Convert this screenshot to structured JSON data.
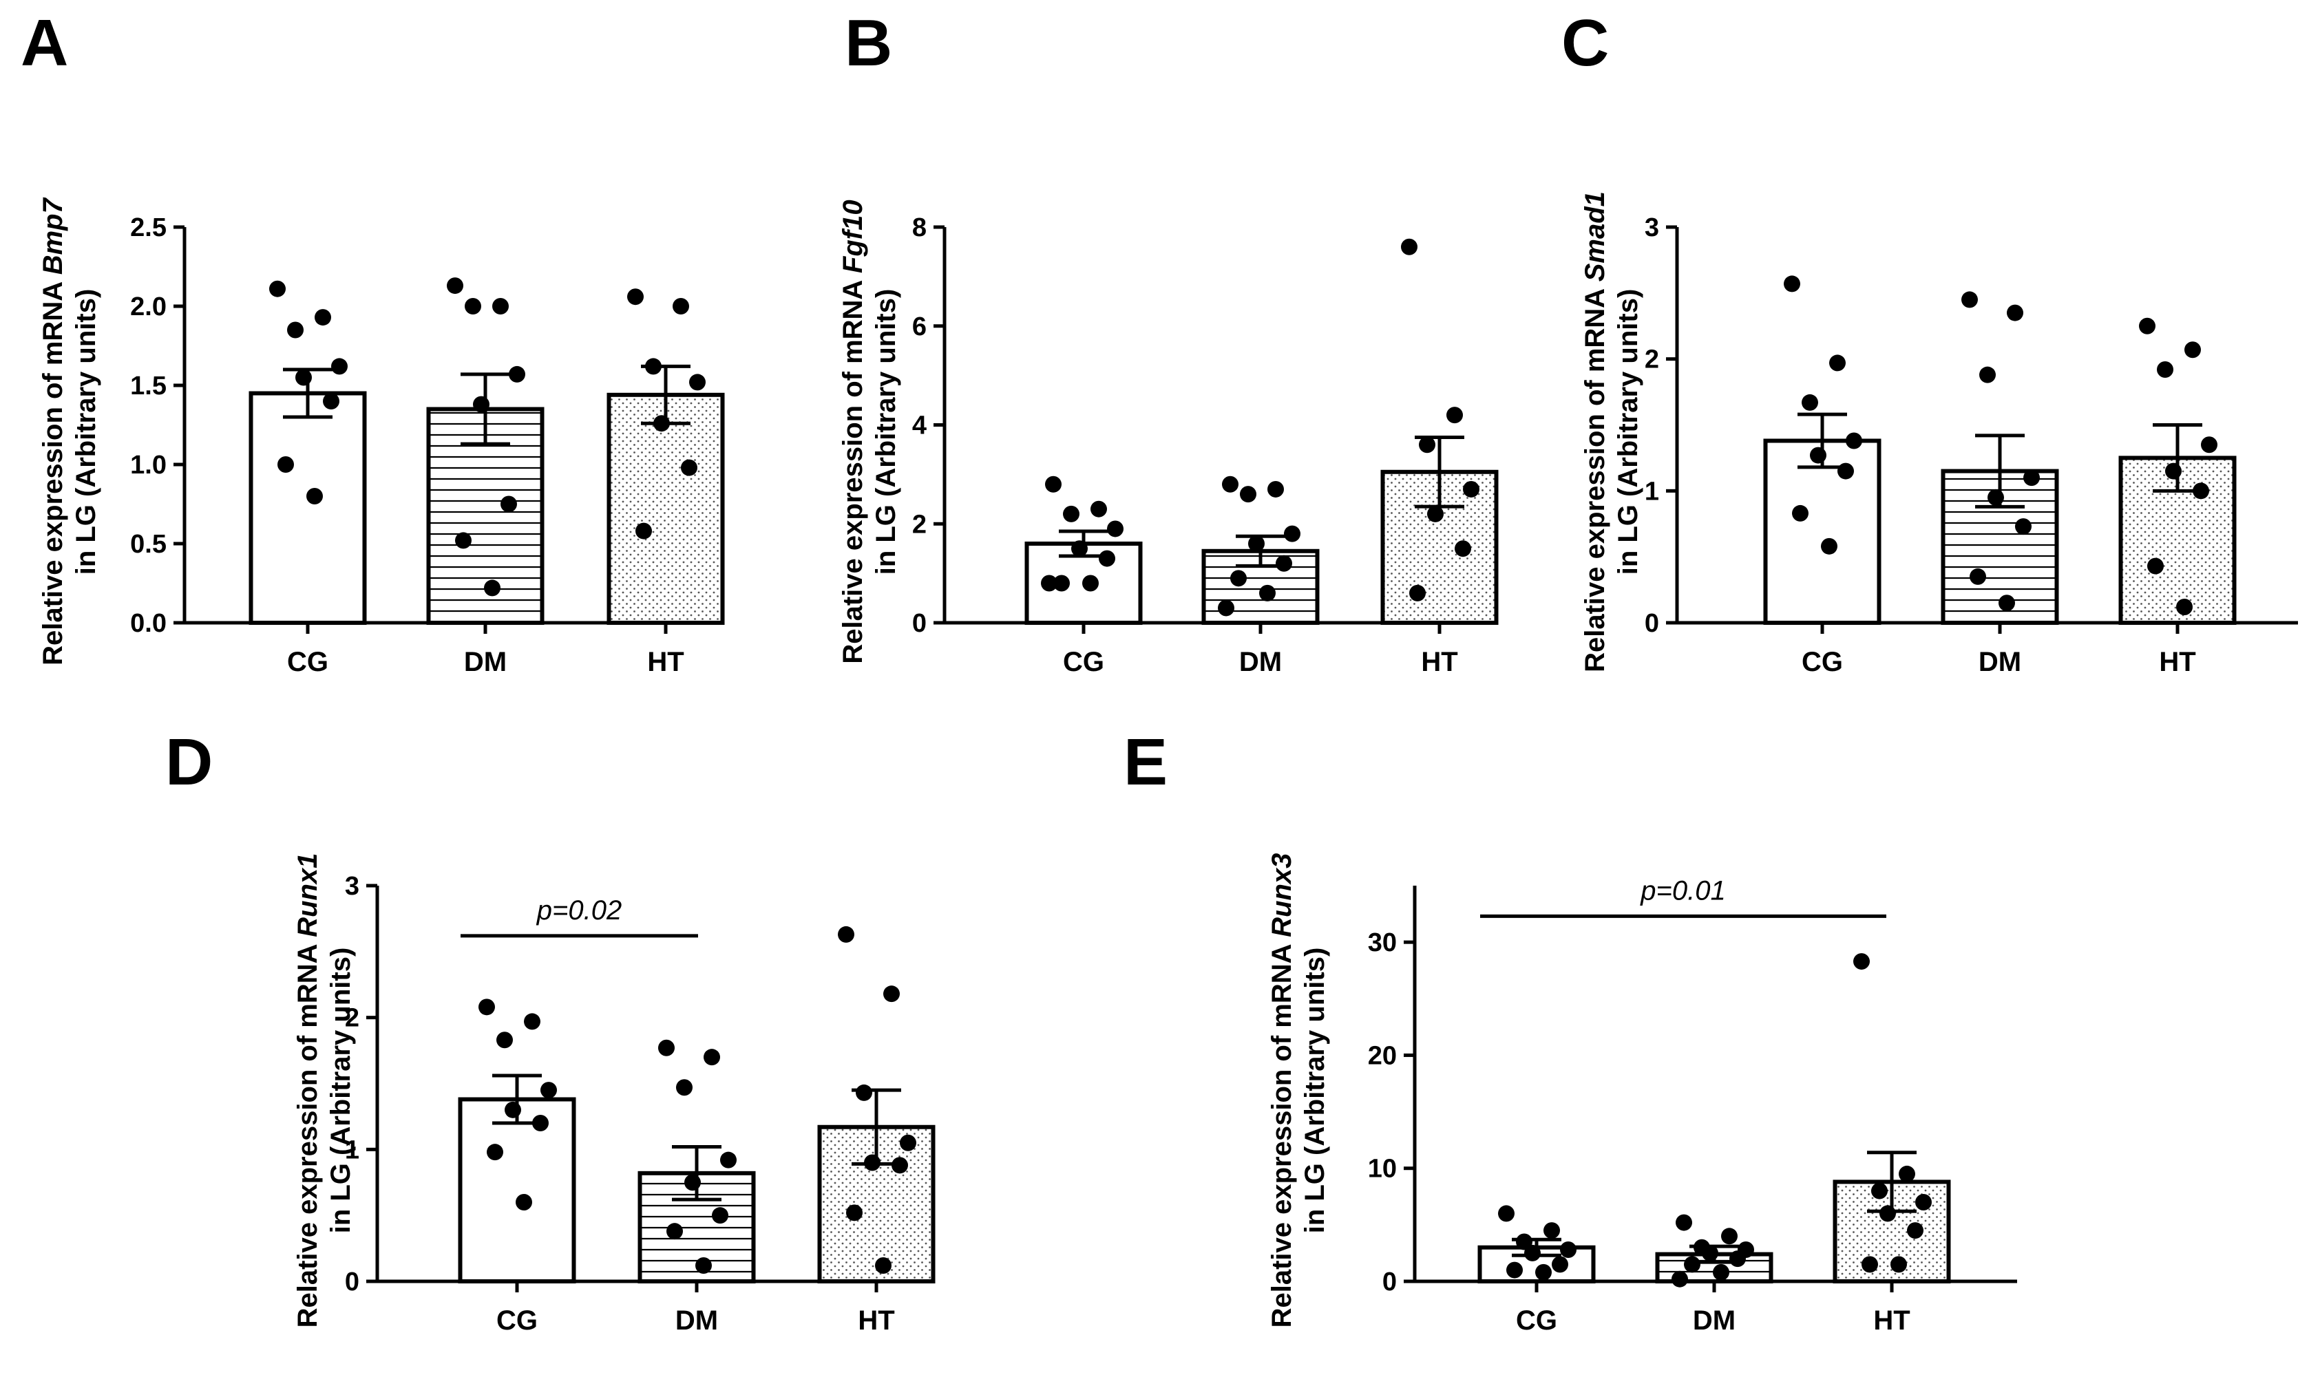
{
  "figure": {
    "patterns": {
      "CG": "none",
      "DM": "horizontal-lines",
      "HT": "dots"
    }
  },
  "chart_data": [
    {
      "panel": "A",
      "type": "bar",
      "gene": "Bmp7",
      "ylabel_line1_prefix": "Relative expression of mRNA ",
      "ylabel_line2": "in LG (Arbitrary units)",
      "categories": [
        "CG",
        "DM",
        "HT"
      ],
      "means": [
        1.45,
        1.35,
        1.44
      ],
      "errors": [
        0.15,
        0.22,
        0.18
      ],
      "points": [
        [
          2.11,
          1.93,
          1.85,
          1.62,
          1.55,
          1.4,
          1.0,
          0.8
        ],
        [
          2.13,
          2.0,
          2.0,
          1.57,
          1.38,
          0.75,
          0.52,
          0.22
        ],
        [
          2.06,
          2.0,
          1.62,
          1.52,
          1.26,
          0.98,
          0.58
        ]
      ],
      "ylim": [
        0,
        2.5
      ],
      "yticks": [
        0,
        0.5,
        1.0,
        1.5,
        2.0,
        2.5
      ],
      "ytick_labels": [
        "0.0",
        "0.5",
        "1.0",
        "1.5",
        "2.0",
        "2.5"
      ],
      "significance": null
    },
    {
      "panel": "B",
      "type": "bar",
      "gene": "Fgf10",
      "ylabel_line1_prefix": "Relative expression of mRNA ",
      "ylabel_line2": "in LG (Arbitrary units)",
      "categories": [
        "CG",
        "DM",
        "HT"
      ],
      "means": [
        1.6,
        1.45,
        3.05
      ],
      "errors": [
        0.25,
        0.3,
        0.7
      ],
      "points": [
        [
          2.8,
          2.3,
          2.2,
          1.9,
          1.5,
          1.3,
          0.8,
          0.8,
          0.8
        ],
        [
          2.8,
          2.7,
          2.6,
          1.8,
          1.6,
          1.2,
          0.9,
          0.6,
          0.3
        ],
        [
          7.6,
          4.2,
          3.6,
          2.7,
          2.2,
          1.5,
          0.6
        ]
      ],
      "ylim": [
        0,
        8
      ],
      "yticks": [
        0,
        2,
        4,
        6,
        8
      ],
      "ytick_labels": [
        "0",
        "2",
        "4",
        "6",
        "8"
      ],
      "significance": null
    },
    {
      "panel": "C",
      "type": "bar",
      "gene": "Smad1",
      "ylabel_line1_prefix": "Relative expression of mRNA ",
      "ylabel_line2": "in LG (Arbitrary units)",
      "categories": [
        "CG",
        "DM",
        "HT"
      ],
      "means": [
        1.38,
        1.15,
        1.25
      ],
      "errors": [
        0.2,
        0.27,
        0.25
      ],
      "points": [
        [
          2.57,
          1.97,
          1.67,
          1.38,
          1.27,
          1.15,
          0.83,
          0.58
        ],
        [
          2.45,
          2.35,
          1.88,
          1.1,
          0.95,
          0.73,
          0.35,
          0.15
        ],
        [
          2.25,
          2.07,
          1.92,
          1.35,
          1.15,
          1.0,
          0.43,
          0.12
        ]
      ],
      "ylim": [
        0,
        3
      ],
      "yticks": [
        0,
        1,
        2,
        3
      ],
      "ytick_labels": [
        "0",
        "1",
        "2",
        "3"
      ],
      "significance": null
    },
    {
      "panel": "D",
      "type": "bar",
      "gene": "Runx1",
      "ylabel_line1_prefix": "Relative expression of mRNA ",
      "ylabel_line2": "in LG (Arbitrary units)",
      "categories": [
        "CG",
        "DM",
        "HT"
      ],
      "means": [
        1.38,
        0.82,
        1.17
      ],
      "errors": [
        0.18,
        0.2,
        0.28
      ],
      "points": [
        [
          2.08,
          1.97,
          1.83,
          1.45,
          1.3,
          1.2,
          0.98,
          0.6
        ],
        [
          1.77,
          1.7,
          1.47,
          0.92,
          0.75,
          0.5,
          0.38,
          0.12
        ],
        [
          2.63,
          2.18,
          1.43,
          1.05,
          0.9,
          0.88,
          0.52,
          0.12
        ]
      ],
      "ylim": [
        0,
        3
      ],
      "yticks": [
        0,
        1,
        2,
        3
      ],
      "ytick_labels": [
        "0",
        "1",
        "2",
        "3"
      ],
      "significance": {
        "from": 0,
        "to": 1,
        "value": 2.62,
        "label": "p=0.02"
      }
    },
    {
      "panel": "E",
      "type": "bar",
      "gene": "Runx3",
      "ylabel_line1_prefix": "Relative expression of mRNA ",
      "ylabel_line2": "in LG (Arbitrary units)",
      "categories": [
        "CG",
        "DM",
        "HT"
      ],
      "means": [
        3.0,
        2.4,
        8.8
      ],
      "errors": [
        0.7,
        0.7,
        2.6
      ],
      "points": [
        [
          6.0,
          4.5,
          3.5,
          2.8,
          2.5,
          1.5,
          1.0,
          0.8
        ],
        [
          5.2,
          4.0,
          3.0,
          2.8,
          2.5,
          2.0,
          1.5,
          0.8,
          0.2
        ],
        [
          28.3,
          9.5,
          8.0,
          7.0,
          6.0,
          4.5,
          1.5,
          1.5
        ]
      ],
      "ylim": [
        0,
        35
      ],
      "yticks": [
        0,
        10,
        20,
        30
      ],
      "ytick_labels": [
        "0",
        "10",
        "20",
        "30"
      ],
      "significance": {
        "from": 0,
        "to": 2,
        "value": 32.3,
        "label": "p=0.01"
      }
    }
  ]
}
